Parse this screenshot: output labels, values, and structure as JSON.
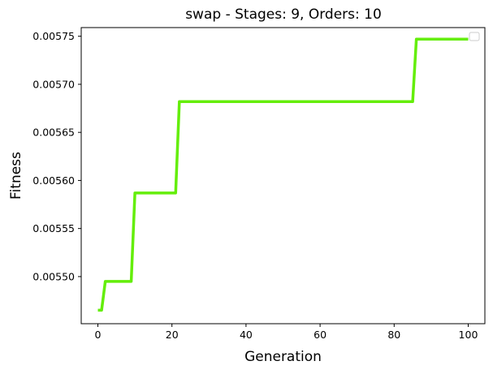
{
  "chart_data": {
    "type": "line",
    "title": "swap - Stages: 9, Orders: 10",
    "xlabel": "Generation",
    "ylabel": "Fitness",
    "xlim": [
      -4.5,
      104.5
    ],
    "ylim": [
      0.005451,
      0.005759
    ],
    "xticks": [
      0,
      20,
      40,
      60,
      80,
      100
    ],
    "yticks": [
      0.0055,
      0.00555,
      0.0056,
      0.00565,
      0.0057,
      0.00575
    ],
    "ytick_labels": [
      "0.00550",
      "0.00555",
      "0.00560",
      "0.00565",
      "0.00570",
      "0.00575"
    ],
    "grid": false,
    "legend": {
      "location": "top-right",
      "entries": []
    },
    "series": [
      {
        "color": "#64ee0a",
        "x": [
          0,
          1,
          2,
          9,
          10,
          21,
          22,
          85,
          86,
          100
        ],
        "y": [
          0.005465,
          0.005465,
          0.005495,
          0.005495,
          0.005587,
          0.005587,
          0.005682,
          0.005682,
          0.005747,
          0.005747
        ]
      }
    ]
  }
}
